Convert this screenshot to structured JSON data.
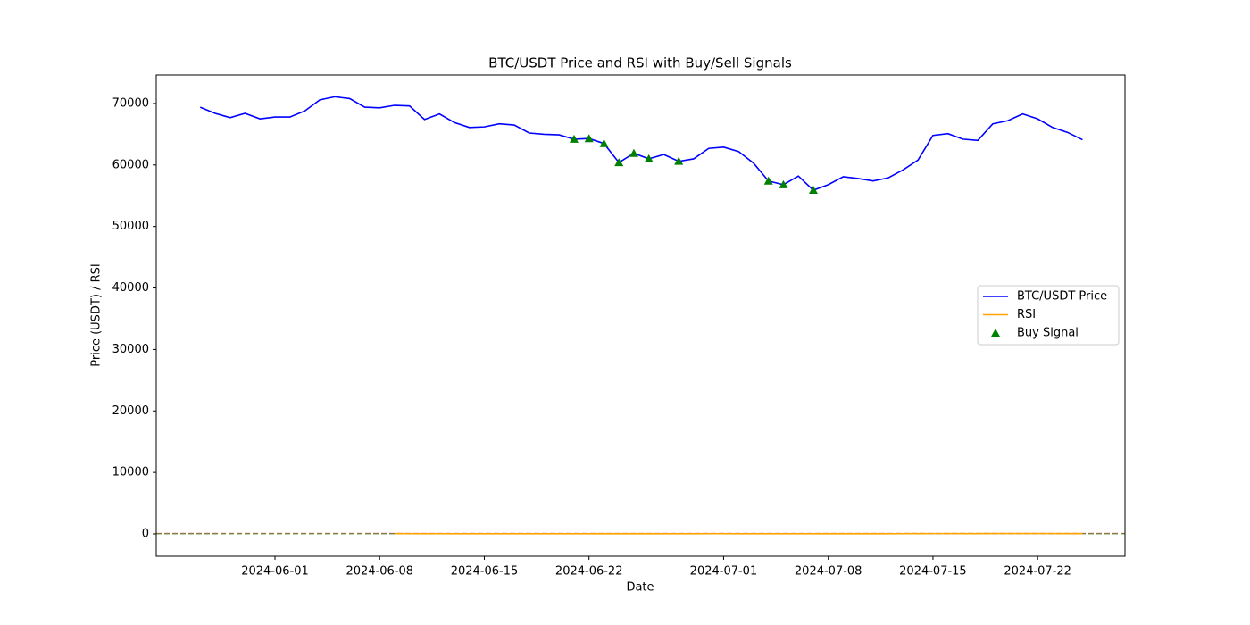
{
  "chart_data": {
    "type": "line",
    "title": "BTC/USDT Price and RSI with Buy/Sell Signals",
    "xlabel": "Date",
    "ylabel": "Price (USDT) / RSI",
    "x": [
      "2024-05-27",
      "2024-05-28",
      "2024-05-29",
      "2024-05-30",
      "2024-05-31",
      "2024-06-01",
      "2024-06-02",
      "2024-06-03",
      "2024-06-04",
      "2024-06-05",
      "2024-06-06",
      "2024-06-07",
      "2024-06-08",
      "2024-06-09",
      "2024-06-10",
      "2024-06-11",
      "2024-06-12",
      "2024-06-13",
      "2024-06-14",
      "2024-06-15",
      "2024-06-16",
      "2024-06-17",
      "2024-06-18",
      "2024-06-19",
      "2024-06-20",
      "2024-06-21",
      "2024-06-22",
      "2024-06-23",
      "2024-06-24",
      "2024-06-25",
      "2024-06-26",
      "2024-06-27",
      "2024-06-28",
      "2024-06-29",
      "2024-06-30",
      "2024-07-01",
      "2024-07-02",
      "2024-07-03",
      "2024-07-04",
      "2024-07-05",
      "2024-07-06",
      "2024-07-07",
      "2024-07-08",
      "2024-07-09",
      "2024-07-10",
      "2024-07-11",
      "2024-07-12",
      "2024-07-13",
      "2024-07-14",
      "2024-07-15",
      "2024-07-16",
      "2024-07-17",
      "2024-07-18",
      "2024-07-19",
      "2024-07-20",
      "2024-07-21",
      "2024-07-22",
      "2024-07-23",
      "2024-07-24",
      "2024-07-25"
    ],
    "series": [
      {
        "name": "BTC/USDT Price",
        "color": "#0000ff",
        "kind": "line",
        "values": [
          69400,
          68400,
          67700,
          68400,
          67500,
          67800,
          67800,
          68800,
          70600,
          71100,
          70800,
          69400,
          69300,
          69700,
          69600,
          67400,
          68300,
          66900,
          66100,
          66200,
          66700,
          66500,
          65200,
          65000,
          64900,
          64200,
          64300,
          63500,
          60400,
          61900,
          61000,
          61700,
          60600,
          61000,
          62700,
          62900,
          62200,
          60300,
          57400,
          56800,
          58200,
          55900,
          56800,
          58100,
          57800,
          57400,
          57900,
          59200,
          60800,
          64800,
          65100,
          64200,
          64000,
          66700,
          67200,
          68300,
          67500,
          66100,
          65300,
          64100
        ]
      },
      {
        "name": "RSI",
        "color": "#ffa500",
        "kind": "line",
        "values": [
          null,
          null,
          null,
          null,
          null,
          null,
          null,
          null,
          null,
          null,
          null,
          null,
          null,
          40,
          38,
          33,
          36,
          32,
          31,
          31,
          33,
          33,
          30,
          31,
          31,
          28,
          29,
          27,
          22,
          29,
          27,
          30,
          26,
          29,
          35,
          36,
          34,
          30,
          24,
          23,
          28,
          22,
          27,
          33,
          32,
          31,
          33,
          38,
          43,
          55,
          56,
          53,
          52,
          60,
          61,
          64,
          60,
          55,
          53,
          50
        ]
      },
      {
        "name": "Buy Signal",
        "color": "#008000",
        "kind": "scatter",
        "values": [
          null,
          null,
          null,
          null,
          null,
          null,
          null,
          null,
          null,
          null,
          null,
          null,
          null,
          null,
          null,
          null,
          null,
          null,
          null,
          null,
          null,
          null,
          null,
          null,
          null,
          64200,
          64300,
          63500,
          60400,
          61900,
          61000,
          null,
          60600,
          null,
          null,
          null,
          null,
          null,
          57400,
          56800,
          null,
          55900,
          null,
          null,
          null,
          null,
          null,
          null,
          null,
          null,
          null,
          null,
          null,
          null,
          null,
          null,
          null,
          null,
          null,
          null
        ]
      }
    ],
    "hlines": [
      {
        "value": 70,
        "color": "#ff0000"
      },
      {
        "value": 30,
        "color": "#008000"
      }
    ],
    "xlim": [
      "2024-05-24T01:26",
      "2024-07-27T20:10"
    ],
    "xticks": [
      "2024-06-01",
      "2024-06-08",
      "2024-06-15",
      "2024-06-22",
      "2024-07-01",
      "2024-07-08",
      "2024-07-15",
      "2024-07-22"
    ],
    "ylim": [
      -3630,
      74640
    ],
    "yticks": [
      0,
      10000,
      20000,
      30000,
      40000,
      50000,
      60000,
      70000
    ],
    "legend": "center right"
  }
}
